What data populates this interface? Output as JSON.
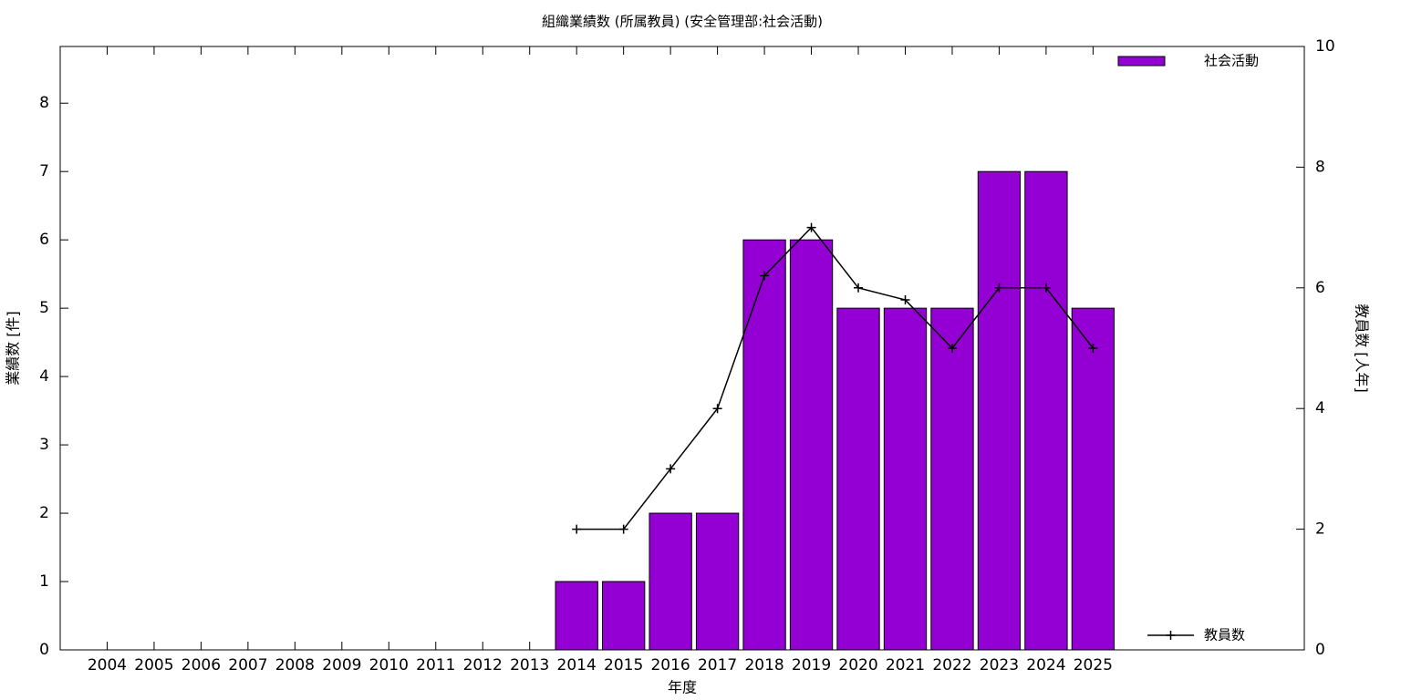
{
  "chart_data": {
    "type": "bar",
    "title": "組織業績数 (所属教員) (安全管理部:社会活動)",
    "xlabel": "年度",
    "ylabel": "業績数 [件]",
    "y2label": "教員数 [人年]",
    "categories": [
      "2004",
      "2005",
      "2006",
      "2007",
      "2008",
      "2009",
      "2010",
      "2011",
      "2012",
      "2013",
      "2014",
      "2015",
      "2016",
      "2017",
      "2018",
      "2019",
      "2020",
      "2021",
      "2022",
      "2023",
      "2024",
      "2025"
    ],
    "series": [
      {
        "name": "社会活動",
        "type": "bar",
        "color": "#9400d3",
        "legend_position": "top right",
        "values": [
          null,
          null,
          null,
          null,
          null,
          null,
          null,
          null,
          null,
          null,
          1,
          1,
          2,
          2,
          6,
          6,
          5,
          5,
          5,
          7,
          7,
          5
        ]
      },
      {
        "name": "教員数",
        "type": "line",
        "axis": "y2",
        "color": "#000000",
        "legend_position": "bottom right",
        "values": [
          null,
          null,
          null,
          null,
          null,
          null,
          null,
          null,
          null,
          null,
          2,
          2,
          3,
          4,
          6.2,
          7,
          6,
          5.8,
          5,
          6,
          6,
          5
        ]
      }
    ],
    "ylim": [
      0,
      8.83
    ],
    "yticks": [
      0,
      1,
      2,
      3,
      4,
      5,
      6,
      7,
      8
    ],
    "y2lim": [
      0,
      10
    ],
    "y2ticks": [
      0,
      2,
      4,
      6,
      8,
      10
    ],
    "grid": false
  }
}
